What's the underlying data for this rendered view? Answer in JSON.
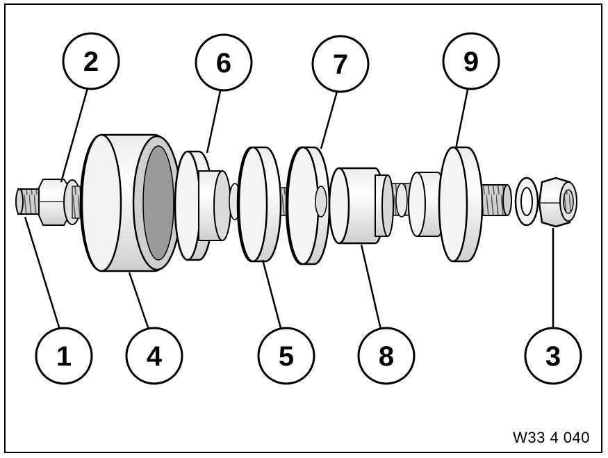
{
  "figure": {
    "reference_code": "W33 4 040",
    "callouts": [
      {
        "id": "1",
        "label": "1"
      },
      {
        "id": "2",
        "label": "2"
      },
      {
        "id": "3",
        "label": "3"
      },
      {
        "id": "4",
        "label": "4"
      },
      {
        "id": "5",
        "label": "5"
      },
      {
        "id": "6",
        "label": "6"
      },
      {
        "id": "7",
        "label": "7"
      },
      {
        "id": "8",
        "label": "8"
      },
      {
        "id": "9",
        "label": "9"
      }
    ]
  }
}
